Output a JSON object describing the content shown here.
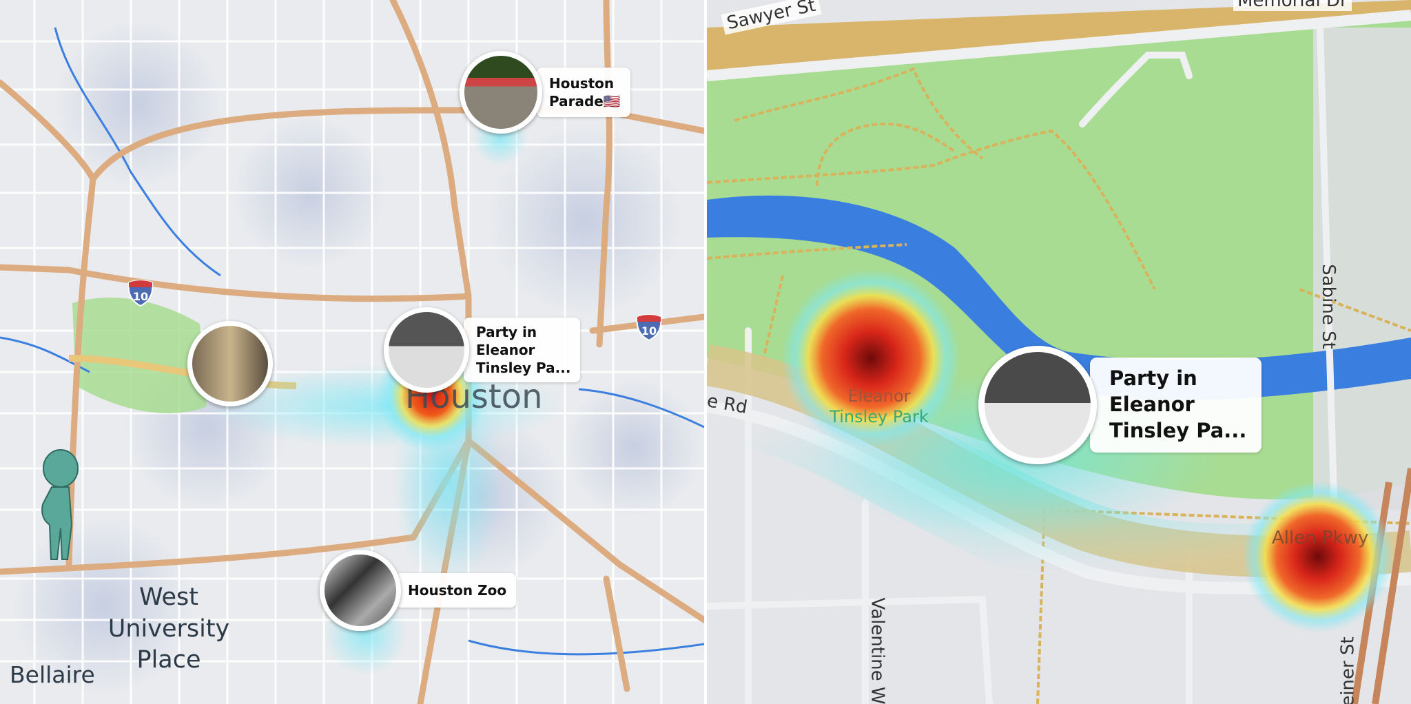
{
  "left_map": {
    "city_label": "Houston",
    "places": [
      "West University Place",
      "Bellaire"
    ],
    "highway_shields": [
      "10",
      "10"
    ],
    "stories": [
      {
        "title_line1": "Houston",
        "title_line2": "Parade",
        "flag": "🇺🇸"
      },
      {
        "title_line1": "Party in",
        "title_line2": "Eleanor",
        "title_line3": "Tinsley Pa..."
      },
      {
        "title_line1": "Houston Zoo"
      }
    ],
    "avatar": "bitmoji-avatar"
  },
  "right_map": {
    "streets": {
      "sawyer": "Sawyer St",
      "memorial": "Memorial Dr",
      "sabine": "Sabine St",
      "rd": "e Rd",
      "valentine": "Valentine W",
      "allen": "Allen Pkwy",
      "einer": "einer St"
    },
    "park_label_line1": "Eleanor",
    "park_label_line2": "Tinsley Park",
    "story": {
      "title_line1": "Party in",
      "title_line2": "Eleanor",
      "title_line3": "Tinsley Pa..."
    }
  },
  "colors": {
    "highway": "#dcab7f",
    "river": "#3a7fe0",
    "park": "#a8dc92",
    "heat_hot": "#b5121b",
    "heat_cool": "#7ee8f5",
    "avatar": "#5aa89a"
  }
}
